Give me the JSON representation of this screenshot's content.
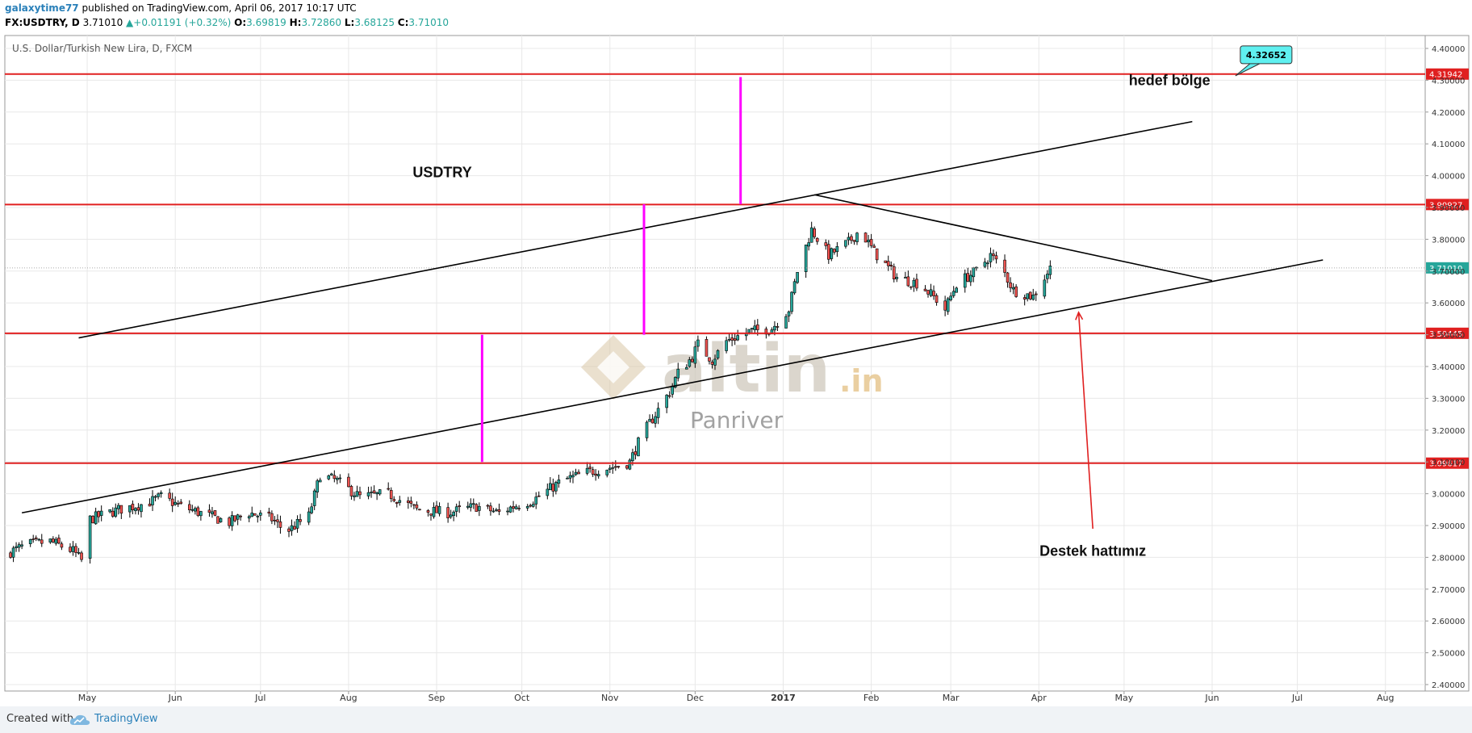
{
  "header": {
    "author": "galaxytime77",
    "published": "published on TradingView.com, April 06, 2017 10:17 UTC",
    "symbol": "FX:USDTRY, D",
    "last": "3.71010",
    "change": "+0.01191 (+0.32%)",
    "open_label": "O:",
    "open": "3.69819",
    "high_label": "H:",
    "high": "3.72860",
    "low_label": "L:",
    "low": "3.68125",
    "close_label": "C:",
    "close": "3.71010"
  },
  "footer": {
    "created_with": "Created with",
    "brand": "TradingView"
  },
  "colors": {
    "up": "#26a69a",
    "down": "#ef5350",
    "candle_line": "#000000",
    "hline": "#e02020",
    "magenta": "#ff00ff",
    "grid": "#e8e8e8",
    "callout": "#5ff0f0"
  },
  "chart_data": {
    "type": "candlestick",
    "title": "U.S. Dollar/Turkish New Lira, D, FXCM",
    "y_ticks": [
      "2.40000",
      "2.50000",
      "2.60000",
      "2.70000",
      "2.80000",
      "2.90000",
      "3.00000",
      "3.10000",
      "3.20000",
      "3.30000",
      "3.40000",
      "3.50000",
      "3.60000",
      "3.70000",
      "3.80000",
      "3.90000",
      "4.00000",
      "4.10000",
      "4.20000",
      "4.30000",
      "4.40000"
    ],
    "ylim": [
      2.4,
      4.44
    ],
    "x_ticks": [
      {
        "label": "May",
        "date": "2016-05-01"
      },
      {
        "label": "Jun",
        "date": "2016-06-01"
      },
      {
        "label": "Jul",
        "date": "2016-07-01"
      },
      {
        "label": "Aug",
        "date": "2016-08-01"
      },
      {
        "label": "Sep",
        "date": "2016-09-01"
      },
      {
        "label": "Oct",
        "date": "2016-10-01"
      },
      {
        "label": "Nov",
        "date": "2016-11-01"
      },
      {
        "label": "Dec",
        "date": "2016-12-01"
      },
      {
        "label": "2017",
        "date": "2017-01-01",
        "bold": true
      },
      {
        "label": "Feb",
        "date": "2017-02-01"
      },
      {
        "label": "Mar",
        "date": "2017-03-01"
      },
      {
        "label": "Apr",
        "date": "2017-04-01"
      },
      {
        "label": "May",
        "date": "2017-05-01"
      },
      {
        "label": "Jun",
        "date": "2017-06-01"
      },
      {
        "label": "Jul",
        "date": "2017-07-01"
      },
      {
        "label": "Aug",
        "date": "2017-08-01"
      }
    ],
    "xlim": [
      "2016-04-02",
      "2017-08-15"
    ],
    "close_path": [
      [
        "2016-04-02",
        2.81
      ],
      [
        "2016-04-10",
        2.84
      ],
      [
        "2016-04-18",
        2.85
      ],
      [
        "2016-04-26",
        2.82
      ],
      [
        "2016-04-29",
        2.79
      ],
      [
        "2016-05-02",
        2.92
      ],
      [
        "2016-05-12",
        2.95
      ],
      [
        "2016-05-22",
        2.97
      ],
      [
        "2016-05-27",
        2.99
      ],
      [
        "2016-06-03",
        2.96
      ],
      [
        "2016-06-13",
        2.93
      ],
      [
        "2016-06-20",
        2.91
      ],
      [
        "2016-06-27",
        2.94
      ],
      [
        "2016-07-05",
        2.92
      ],
      [
        "2016-07-10",
        2.88
      ],
      [
        "2016-07-18",
        2.93
      ],
      [
        "2016-07-22",
        3.06
      ],
      [
        "2016-07-28",
        3.04
      ],
      [
        "2016-08-05",
        2.99
      ],
      [
        "2016-08-15",
        3.0
      ],
      [
        "2016-08-25",
        2.95
      ],
      [
        "2016-09-05",
        2.94
      ],
      [
        "2016-09-15",
        2.96
      ],
      [
        "2016-09-23",
        2.94
      ],
      [
        "2016-09-28",
        2.96
      ],
      [
        "2016-10-05",
        2.98
      ],
      [
        "2016-10-15",
        3.04
      ],
      [
        "2016-10-25",
        3.07
      ],
      [
        "2016-11-05",
        3.09
      ],
      [
        "2016-11-08",
        3.1
      ],
      [
        "2016-11-12",
        3.18
      ],
      [
        "2016-11-17",
        3.25
      ],
      [
        "2016-11-22",
        3.32
      ],
      [
        "2016-11-25",
        3.38
      ],
      [
        "2016-11-30",
        3.43
      ],
      [
        "2016-12-02",
        3.47
      ],
      [
        "2016-12-07",
        3.42
      ],
      [
        "2016-12-12",
        3.48
      ],
      [
        "2016-12-20",
        3.51
      ],
      [
        "2016-12-28",
        3.52
      ],
      [
        "2017-01-03",
        3.58
      ],
      [
        "2017-01-06",
        3.7
      ],
      [
        "2017-01-11",
        3.83
      ],
      [
        "2017-01-17",
        3.75
      ],
      [
        "2017-01-24",
        3.79
      ],
      [
        "2017-01-28",
        3.83
      ],
      [
        "2017-02-02",
        3.76
      ],
      [
        "2017-02-10",
        3.68
      ],
      [
        "2017-02-18",
        3.66
      ],
      [
        "2017-02-24",
        3.61
      ],
      [
        "2017-02-27",
        3.58
      ],
      [
        "2017-03-03",
        3.66
      ],
      [
        "2017-03-10",
        3.7
      ],
      [
        "2017-03-15",
        3.75
      ],
      [
        "2017-03-19",
        3.71
      ],
      [
        "2017-03-23",
        3.64
      ],
      [
        "2017-03-30",
        3.62
      ],
      [
        "2017-04-05",
        3.71
      ]
    ],
    "horizontal_levels": [
      {
        "price": 4.31942,
        "label": "4.31942"
      },
      {
        "price": 3.90927,
        "label": "3.90927"
      },
      {
        "price": 3.50445,
        "label": "3.50445"
      },
      {
        "price": 3.09617,
        "label": "3.09617"
      }
    ],
    "last_price": {
      "price": 3.7101,
      "label": "3.71010"
    },
    "trend_lines": [
      {
        "name": "channel-upper",
        "from": [
          "2016-04-28",
          3.49
        ],
        "to": [
          "2017-05-25",
          4.17
        ]
      },
      {
        "name": "channel-lower",
        "from": [
          "2016-04-08",
          2.94
        ],
        "to": [
          "2017-07-10",
          3.735
        ]
      },
      {
        "name": "triangle-upper",
        "from": [
          "2017-01-12",
          3.94
        ],
        "to": [
          "2017-06-01",
          3.67
        ]
      }
    ],
    "vertical_segments": [
      {
        "date": "2016-09-17",
        "from": 3.1,
        "to": 3.5
      },
      {
        "date": "2016-11-13",
        "from": 3.5,
        "to": 3.91
      },
      {
        "date": "2016-12-17",
        "from": 3.91,
        "to": 4.31
      }
    ],
    "arrow": {
      "from": [
        "2017-04-20",
        2.89
      ],
      "to": [
        "2017-04-15",
        3.57
      ]
    },
    "annotations": [
      {
        "text": "USDTRY",
        "date": "2016-09-03",
        "price": 3.995
      },
      {
        "text": "hedef bölge",
        "date": "2017-05-17",
        "price": 4.285
      },
      {
        "text": "Destek hattımız",
        "date": "2017-04-20",
        "price": 2.805
      }
    ],
    "callout": {
      "text": "4.32652",
      "date": "2017-06-20",
      "price": 4.38
    },
    "watermark": {
      "brand": "altin",
      "suffix": ".in",
      "sub": "Panriver"
    }
  }
}
